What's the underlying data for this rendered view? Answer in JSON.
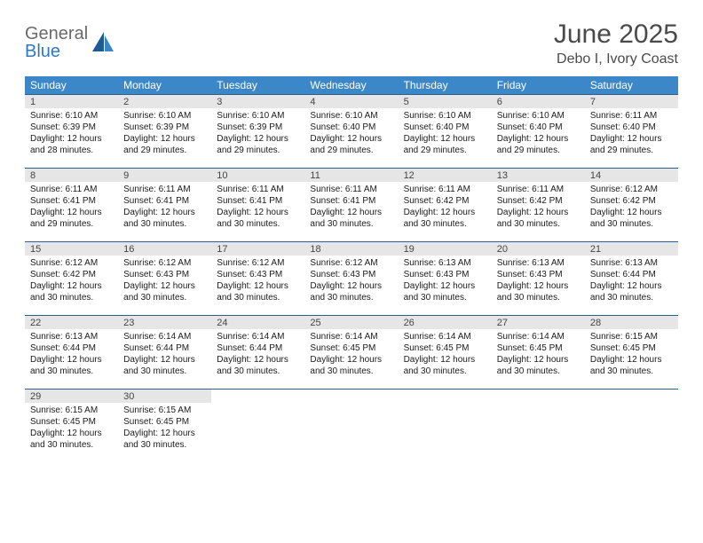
{
  "brand": {
    "word1": "General",
    "word2": "Blue"
  },
  "header": {
    "title": "June 2025",
    "location": "Debo I, Ivory Coast"
  },
  "colors": {
    "header_bg": "#3c87c7",
    "header_text": "#ffffff",
    "row_border": "#2a5f8f",
    "daynum_bg": "#e6e6e6",
    "brand_grey": "#6a6a6a",
    "brand_blue": "#2f78bf"
  },
  "weekdays": [
    "Sunday",
    "Monday",
    "Tuesday",
    "Wednesday",
    "Thursday",
    "Friday",
    "Saturday"
  ],
  "start_offset": 0,
  "days": [
    {
      "n": "1",
      "sunrise": "6:10 AM",
      "sunset": "6:39 PM",
      "dl1": "12 hours",
      "dl2": "and 28 minutes."
    },
    {
      "n": "2",
      "sunrise": "6:10 AM",
      "sunset": "6:39 PM",
      "dl1": "12 hours",
      "dl2": "and 29 minutes."
    },
    {
      "n": "3",
      "sunrise": "6:10 AM",
      "sunset": "6:39 PM",
      "dl1": "12 hours",
      "dl2": "and 29 minutes."
    },
    {
      "n": "4",
      "sunrise": "6:10 AM",
      "sunset": "6:40 PM",
      "dl1": "12 hours",
      "dl2": "and 29 minutes."
    },
    {
      "n": "5",
      "sunrise": "6:10 AM",
      "sunset": "6:40 PM",
      "dl1": "12 hours",
      "dl2": "and 29 minutes."
    },
    {
      "n": "6",
      "sunrise": "6:10 AM",
      "sunset": "6:40 PM",
      "dl1": "12 hours",
      "dl2": "and 29 minutes."
    },
    {
      "n": "7",
      "sunrise": "6:11 AM",
      "sunset": "6:40 PM",
      "dl1": "12 hours",
      "dl2": "and 29 minutes."
    },
    {
      "n": "8",
      "sunrise": "6:11 AM",
      "sunset": "6:41 PM",
      "dl1": "12 hours",
      "dl2": "and 29 minutes."
    },
    {
      "n": "9",
      "sunrise": "6:11 AM",
      "sunset": "6:41 PM",
      "dl1": "12 hours",
      "dl2": "and 30 minutes."
    },
    {
      "n": "10",
      "sunrise": "6:11 AM",
      "sunset": "6:41 PM",
      "dl1": "12 hours",
      "dl2": "and 30 minutes."
    },
    {
      "n": "11",
      "sunrise": "6:11 AM",
      "sunset": "6:41 PM",
      "dl1": "12 hours",
      "dl2": "and 30 minutes."
    },
    {
      "n": "12",
      "sunrise": "6:11 AM",
      "sunset": "6:42 PM",
      "dl1": "12 hours",
      "dl2": "and 30 minutes."
    },
    {
      "n": "13",
      "sunrise": "6:11 AM",
      "sunset": "6:42 PM",
      "dl1": "12 hours",
      "dl2": "and 30 minutes."
    },
    {
      "n": "14",
      "sunrise": "6:12 AM",
      "sunset": "6:42 PM",
      "dl1": "12 hours",
      "dl2": "and 30 minutes."
    },
    {
      "n": "15",
      "sunrise": "6:12 AM",
      "sunset": "6:42 PM",
      "dl1": "12 hours",
      "dl2": "and 30 minutes."
    },
    {
      "n": "16",
      "sunrise": "6:12 AM",
      "sunset": "6:43 PM",
      "dl1": "12 hours",
      "dl2": "and 30 minutes."
    },
    {
      "n": "17",
      "sunrise": "6:12 AM",
      "sunset": "6:43 PM",
      "dl1": "12 hours",
      "dl2": "and 30 minutes."
    },
    {
      "n": "18",
      "sunrise": "6:12 AM",
      "sunset": "6:43 PM",
      "dl1": "12 hours",
      "dl2": "and 30 minutes."
    },
    {
      "n": "19",
      "sunrise": "6:13 AM",
      "sunset": "6:43 PM",
      "dl1": "12 hours",
      "dl2": "and 30 minutes."
    },
    {
      "n": "20",
      "sunrise": "6:13 AM",
      "sunset": "6:43 PM",
      "dl1": "12 hours",
      "dl2": "and 30 minutes."
    },
    {
      "n": "21",
      "sunrise": "6:13 AM",
      "sunset": "6:44 PM",
      "dl1": "12 hours",
      "dl2": "and 30 minutes."
    },
    {
      "n": "22",
      "sunrise": "6:13 AM",
      "sunset": "6:44 PM",
      "dl1": "12 hours",
      "dl2": "and 30 minutes."
    },
    {
      "n": "23",
      "sunrise": "6:14 AM",
      "sunset": "6:44 PM",
      "dl1": "12 hours",
      "dl2": "and 30 minutes."
    },
    {
      "n": "24",
      "sunrise": "6:14 AM",
      "sunset": "6:44 PM",
      "dl1": "12 hours",
      "dl2": "and 30 minutes."
    },
    {
      "n": "25",
      "sunrise": "6:14 AM",
      "sunset": "6:45 PM",
      "dl1": "12 hours",
      "dl2": "and 30 minutes."
    },
    {
      "n": "26",
      "sunrise": "6:14 AM",
      "sunset": "6:45 PM",
      "dl1": "12 hours",
      "dl2": "and 30 minutes."
    },
    {
      "n": "27",
      "sunrise": "6:14 AM",
      "sunset": "6:45 PM",
      "dl1": "12 hours",
      "dl2": "and 30 minutes."
    },
    {
      "n": "28",
      "sunrise": "6:15 AM",
      "sunset": "6:45 PM",
      "dl1": "12 hours",
      "dl2": "and 30 minutes."
    },
    {
      "n": "29",
      "sunrise": "6:15 AM",
      "sunset": "6:45 PM",
      "dl1": "12 hours",
      "dl2": "and 30 minutes."
    },
    {
      "n": "30",
      "sunrise": "6:15 AM",
      "sunset": "6:45 PM",
      "dl1": "12 hours",
      "dl2": "and 30 minutes."
    }
  ],
  "labels": {
    "sunrise": "Sunrise:",
    "sunset": "Sunset:",
    "daylight": "Daylight:"
  }
}
